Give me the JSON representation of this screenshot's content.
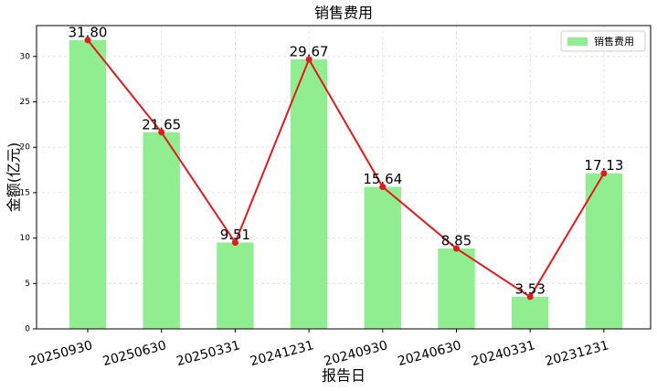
{
  "chart_data": {
    "type": "bar",
    "title": "销售费用",
    "x_label": "报告日",
    "y_label": "金额(亿元)",
    "categories": [
      "20250930",
      "20250630",
      "20250331",
      "20241231",
      "20240930",
      "20240630",
      "20240331",
      "20231231"
    ],
    "series": [
      {
        "name": "销售费用",
        "color": "#90ee90",
        "values": [
          31.8,
          21.65,
          9.51,
          29.67,
          15.64,
          8.85,
          3.53,
          17.13
        ],
        "value_labels": [
          "31.80",
          "21.65",
          "9.51",
          "29.67",
          "15.64",
          "8.85",
          "3.53",
          "17.13"
        ]
      }
    ],
    "line_color": "#e31a1c",
    "ylim": [
      0,
      33.4
    ],
    "yticks": [
      0,
      5,
      10,
      15,
      20,
      25,
      30
    ],
    "grid": true,
    "legend": "upper right"
  }
}
